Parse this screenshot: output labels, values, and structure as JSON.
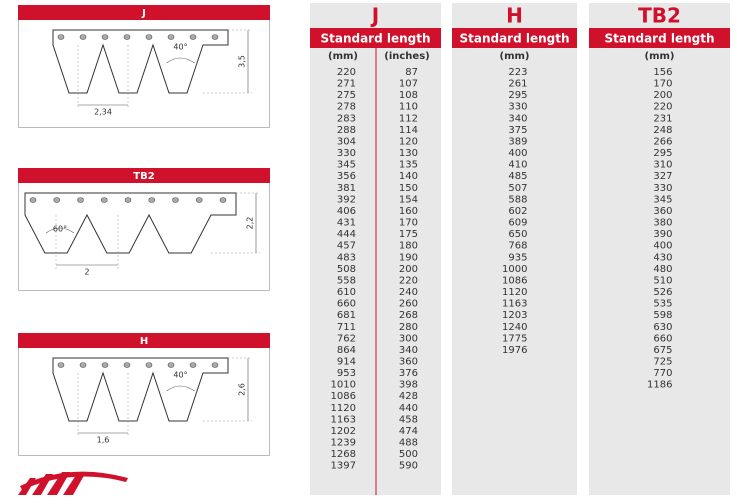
{
  "profiles": [
    {
      "title": "J",
      "angle": "40°",
      "height": "3,5",
      "pitch": "2,34"
    },
    {
      "title": "TB2",
      "angle": "60°",
      "height": "2,2",
      "pitch": "2"
    },
    {
      "title": "H",
      "angle": "40°",
      "height": "2,6",
      "pitch": "1,6"
    }
  ],
  "tables": [
    {
      "title": "J",
      "header": "Standard length",
      "units": [
        "(mm)",
        "(inches)"
      ],
      "columns": [
        [
          220,
          271,
          275,
          278,
          283,
          288,
          304,
          330,
          345,
          356,
          381,
          392,
          406,
          431,
          444,
          457,
          483,
          508,
          558,
          610,
          660,
          681,
          711,
          762,
          864,
          914,
          953,
          1010,
          1086,
          1120,
          1163,
          1202,
          1239,
          1268,
          1397
        ],
        [
          87,
          107,
          108,
          110,
          112,
          114,
          120,
          130,
          135,
          140,
          150,
          154,
          160,
          170,
          175,
          180,
          190,
          200,
          220,
          240,
          260,
          268,
          280,
          300,
          340,
          360,
          376,
          398,
          428,
          440,
          458,
          474,
          488,
          500,
          590
        ]
      ]
    },
    {
      "title": "H",
      "header": "Standard length",
      "units": [
        "(mm)"
      ],
      "columns": [
        [
          223,
          261,
          295,
          330,
          340,
          375,
          389,
          400,
          410,
          485,
          507,
          588,
          602,
          609,
          650,
          768,
          935,
          1000,
          1086,
          1120,
          1163,
          1203,
          1240,
          1775,
          1976
        ]
      ]
    },
    {
      "title": "TB2",
      "header": "Standard length",
      "units": [
        "(mm)"
      ],
      "columns": [
        [
          156,
          170,
          200,
          220,
          231,
          248,
          266,
          295,
          310,
          327,
          330,
          345,
          360,
          380,
          390,
          400,
          430,
          480,
          510,
          526,
          535,
          598,
          630,
          660,
          675,
          725,
          770,
          1186
        ]
      ]
    }
  ]
}
